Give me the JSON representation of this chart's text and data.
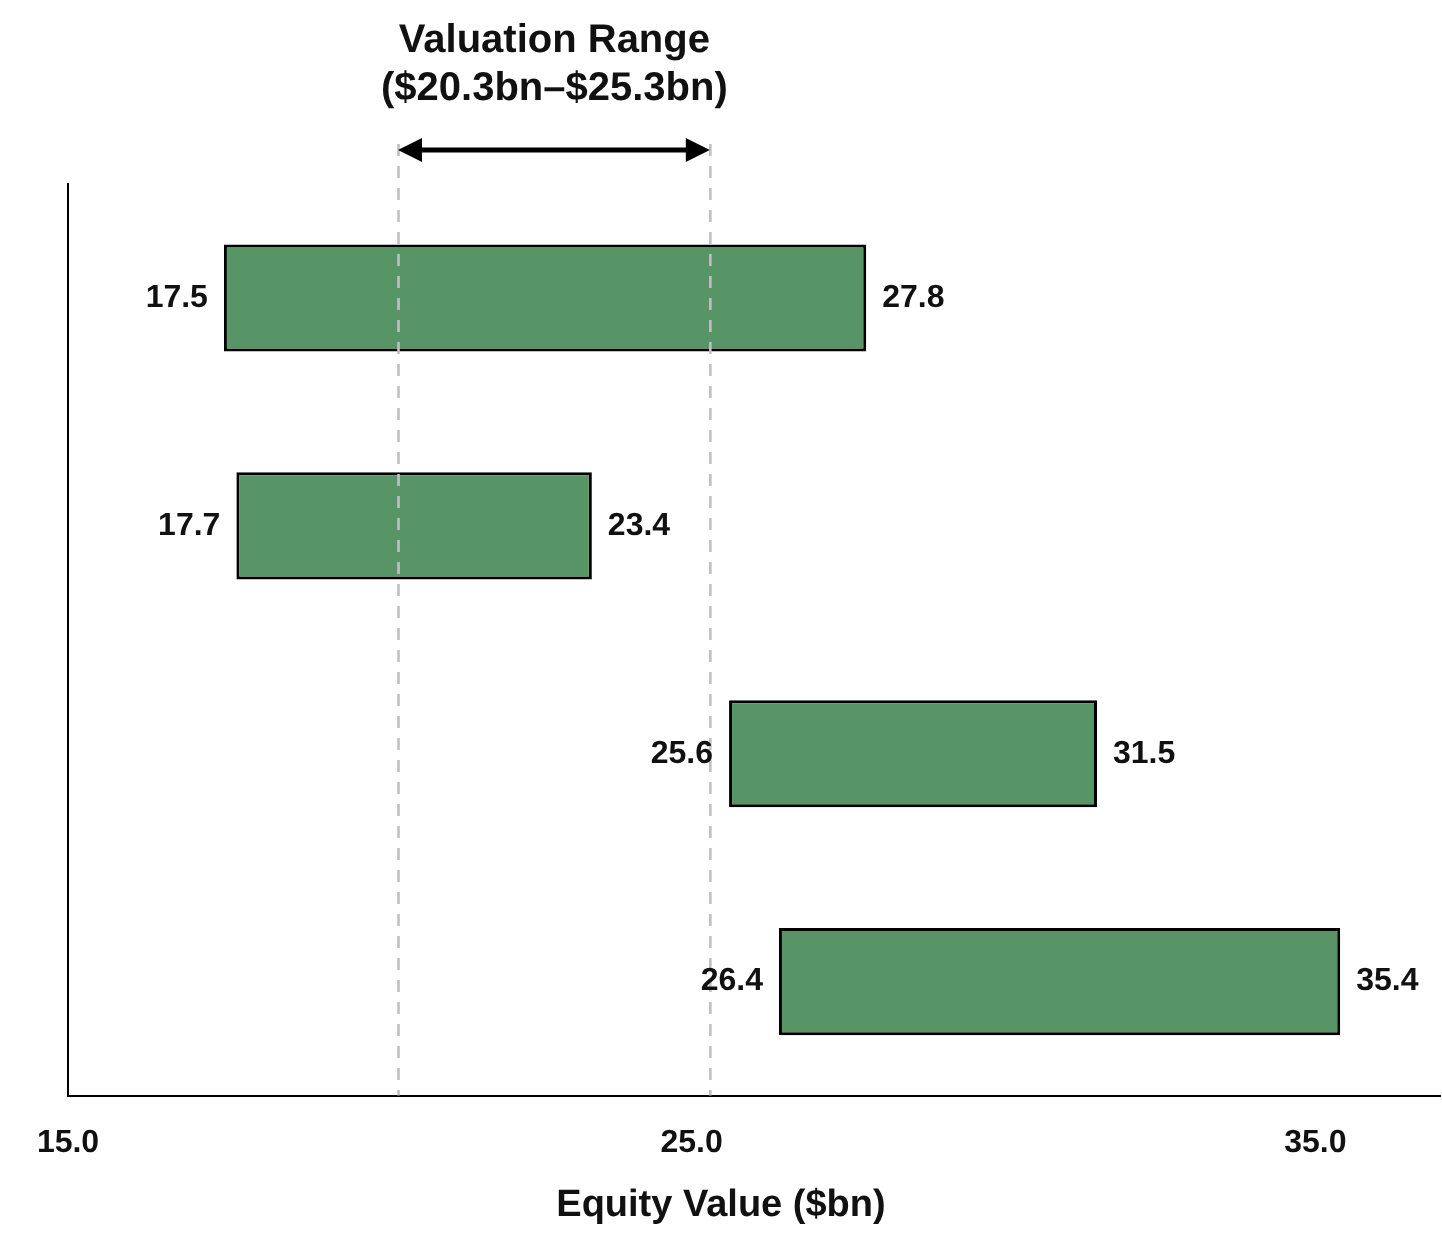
{
  "chart_data": {
    "type": "bar",
    "orientation": "horizontal",
    "title": "Valuation Range ($20.3bn–$25.3bn)",
    "xlabel": "Equity Value ($bn)",
    "categories": [
      null,
      null,
      null,
      null
    ],
    "base": [
      17.5,
      17.7,
      25.6,
      26.4
    ],
    "values": [
      10.3,
      5.7,
      5.9,
      9.0
    ],
    "color": "#579466",
    "xlim": [
      15,
      37
    ],
    "xticks": [
      {
        "value": 15,
        "label": "15.0"
      },
      {
        "value": 25,
        "label": "25.0"
      },
      {
        "value": 35,
        "label": "35.0"
      }
    ],
    "grid": false,
    "legend": false,
    "ref_lines": [
      {
        "axis": "x",
        "value": 20.3,
        "color": "#c0c0c0",
        "line_style": "dashed"
      },
      {
        "axis": "x",
        "value": 25.3,
        "color": "#c0c0c0",
        "line_style": "dashed"
      }
    ],
    "annotations": [
      {
        "text": "17.5",
        "x": 17.5
      },
      {
        "text": "27.8",
        "x": 27.8
      },
      {
        "text": "17.7",
        "x": 17.7
      },
      {
        "text": "23.4",
        "x": 23.4
      },
      {
        "text": "25.6",
        "x": 25.6
      },
      {
        "text": "31.5",
        "x": 31.5
      },
      {
        "text": "26.4",
        "x": 26.4
      },
      {
        "text": "35.4",
        "x": 35.4
      }
    ]
  }
}
